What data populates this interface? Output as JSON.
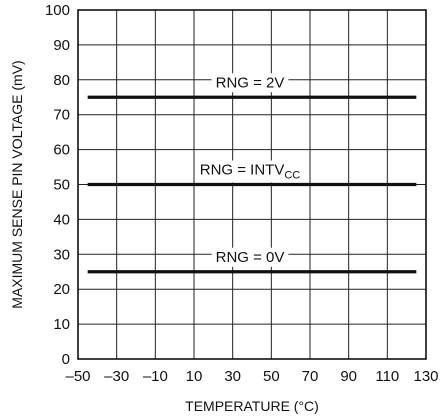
{
  "chart_data": {
    "type": "line",
    "title": "",
    "xlabel": "TEMPERATURE (°C)",
    "ylabel": "MAXIMUM SENSE PIN VOLTAGE (mV)",
    "xlim": [
      -50,
      130
    ],
    "ylim": [
      0,
      100
    ],
    "grid": true,
    "x_ticks": [
      "–50",
      "–30",
      "–10",
      "10",
      "30",
      "50",
      "70",
      "90",
      "110",
      "130"
    ],
    "y_ticks": [
      "0",
      "10",
      "20",
      "30",
      "40",
      "50",
      "60",
      "70",
      "80",
      "90",
      "100"
    ],
    "series": [
      {
        "name": "RNG = 2V",
        "x": [
          -45,
          125
        ],
        "y": [
          75,
          75
        ]
      },
      {
        "name": "RNG = INTV",
        "name_subscript": "CC",
        "x": [
          -45,
          125
        ],
        "y": [
          50,
          50
        ]
      },
      {
        "name": "RNG = 0V",
        "x": [
          -45,
          125
        ],
        "y": [
          25,
          25
        ]
      }
    ]
  }
}
